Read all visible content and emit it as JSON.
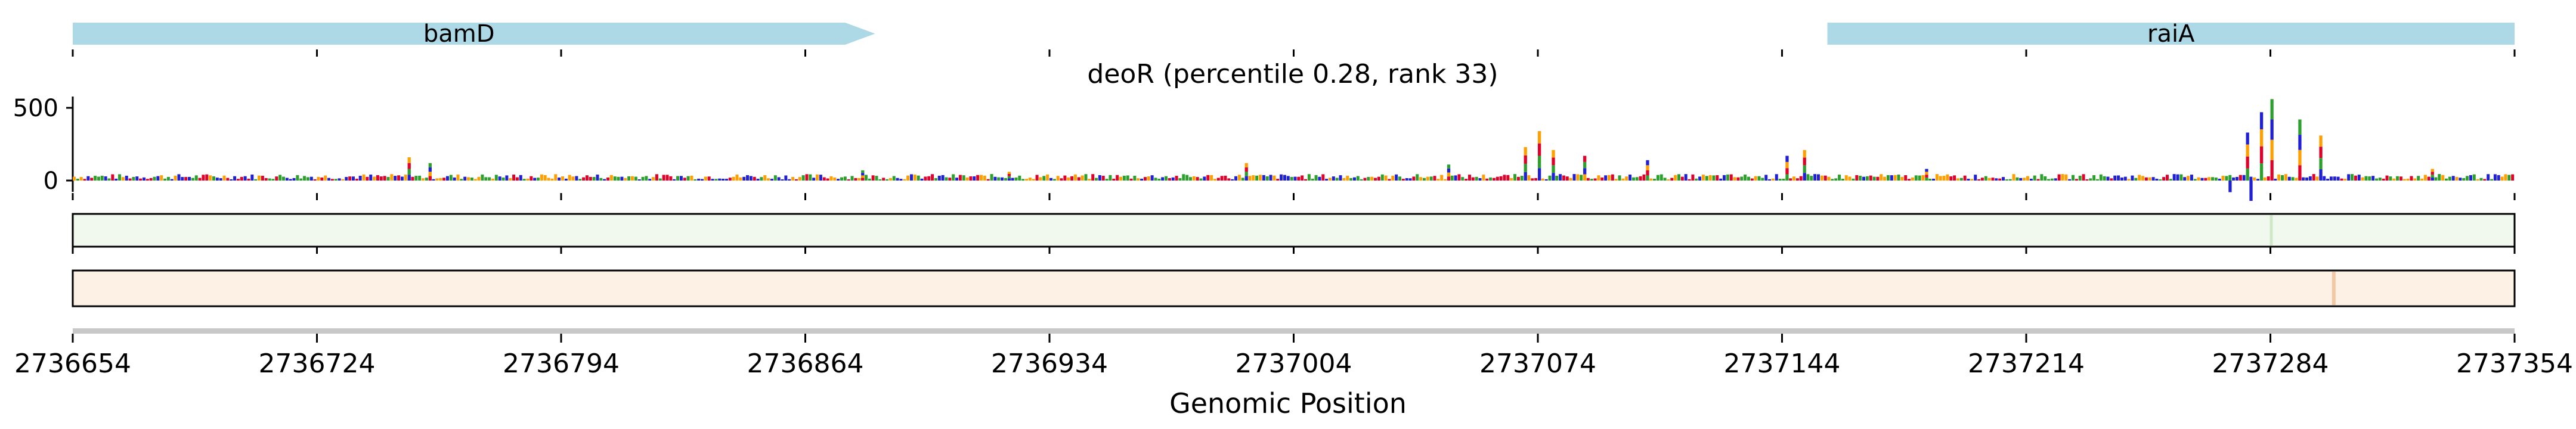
{
  "chart_data": {
    "type": "line",
    "title": "deoR (percentile 0.28, rank 33)",
    "xlabel": "Genomic Position",
    "ylabel": "",
    "xlim": [
      2736654,
      2737354
    ],
    "ylim": [
      -150,
      600
    ],
    "x_tick_labels": [
      "2736654",
      "2736724",
      "2736794",
      "2736864",
      "2736934",
      "2737004",
      "2737074",
      "2737144",
      "2737214",
      "2737284",
      "2737354"
    ],
    "y_tick_labels": [
      "500",
      "0"
    ],
    "y_tick_values": [
      500,
      0
    ],
    "genes": [
      {
        "name": "bamD",
        "start": 2736654,
        "end": 2736884,
        "strand": "+"
      },
      {
        "name": "raiA",
        "start": 2737157,
        "end": 2737354,
        "strand": "+"
      }
    ],
    "motif_peaks": [
      {
        "x": 2736750,
        "value": 160
      },
      {
        "x": 2736756,
        "value": 120
      },
      {
        "x": 2736880,
        "value": 70
      },
      {
        "x": 2736922,
        "value": 60
      },
      {
        "x": 2736990,
        "value": 120
      },
      {
        "x": 2737048,
        "value": 110
      },
      {
        "x": 2737070,
        "value": 230
      },
      {
        "x": 2737074,
        "value": 340
      },
      {
        "x": 2737078,
        "value": 210
      },
      {
        "x": 2737087,
        "value": 170
      },
      {
        "x": 2737105,
        "value": 140
      },
      {
        "x": 2737145,
        "value": 170
      },
      {
        "x": 2737150,
        "value": 210
      },
      {
        "x": 2737185,
        "value": 80
      },
      {
        "x": 2737277,
        "value": 330
      },
      {
        "x": 2737281,
        "value": 470
      },
      {
        "x": 2737284,
        "value": 560
      },
      {
        "x": 2737292,
        "value": 420
      },
      {
        "x": 2737298,
        "value": 310
      },
      {
        "x": 2737330,
        "value": 80
      }
    ],
    "negative_peaks": [
      {
        "x": 2737272,
        "value": -80
      },
      {
        "x": 2737278,
        "value": -140
      }
    ],
    "colors": {
      "gene": "#add8e6",
      "track1": "#f1f9ee",
      "track2": "#fdf1e6",
      "track2_mark": "#f3c7a6",
      "bases": [
        "#2ca02c",
        "#1f1fd6",
        "#ff9f00",
        "#e0002a"
      ]
    }
  }
}
